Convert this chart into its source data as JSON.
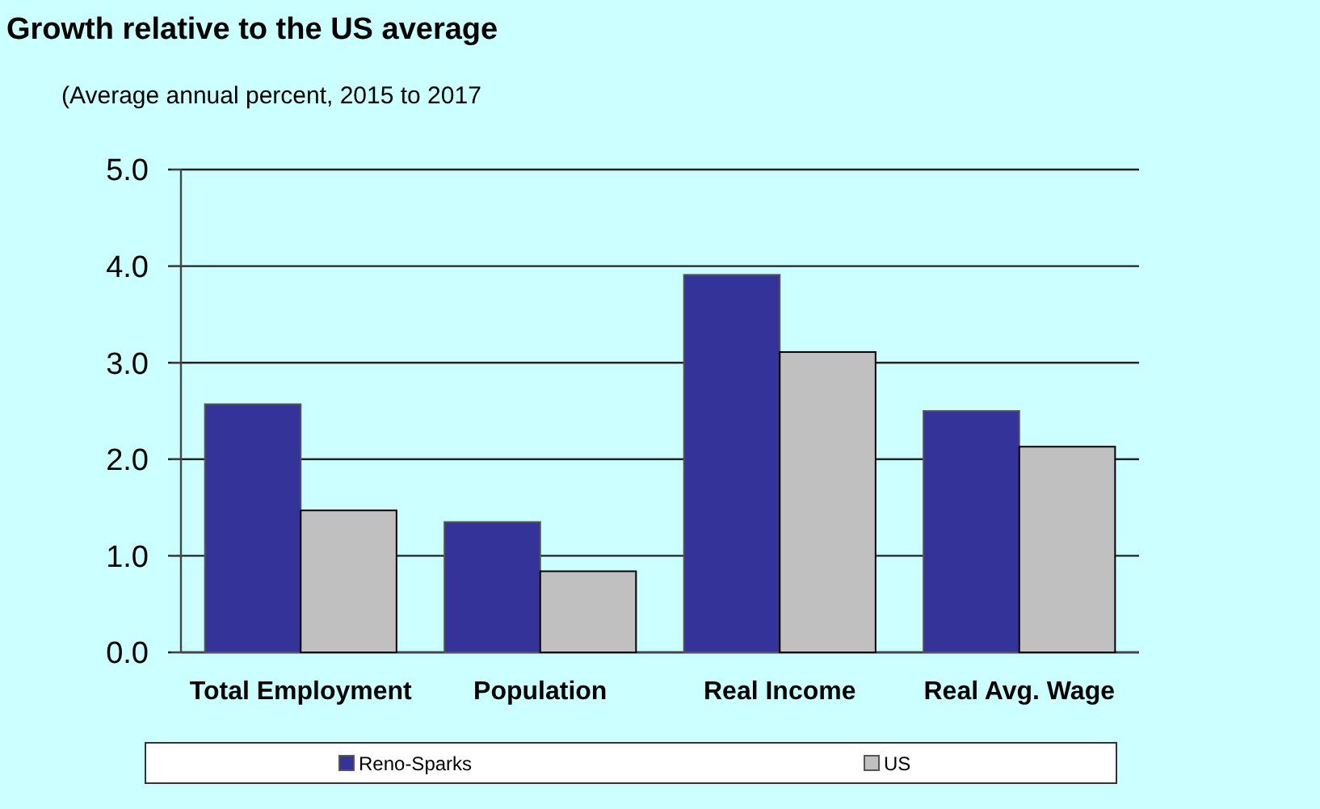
{
  "chart_data": {
    "type": "bar",
    "title": "Growth relative to the US average",
    "subtitle": "(Average annual percent, 2015 to 2017",
    "categories": [
      "Total Employment",
      "Population",
      "Real Income",
      "Real Avg. Wage"
    ],
    "series": [
      {
        "name": "Reno-Sparks",
        "color": "#333399",
        "values": [
          2.57,
          1.35,
          3.91,
          2.5
        ]
      },
      {
        "name": "US",
        "color": "#c0c0c0",
        "values": [
          1.47,
          0.84,
          3.11,
          2.13
        ]
      }
    ],
    "ylim": [
      0,
      5
    ],
    "yticks": [
      {
        "value": 0,
        "label": "0.0"
      },
      {
        "value": 1,
        "label": "1.0"
      },
      {
        "value": 2,
        "label": "2.0"
      },
      {
        "value": 3,
        "label": "3.0"
      },
      {
        "value": 4,
        "label": "4.0"
      },
      {
        "value": 5,
        "label": "5.0"
      }
    ],
    "grid": "y",
    "legend": "bottom"
  }
}
